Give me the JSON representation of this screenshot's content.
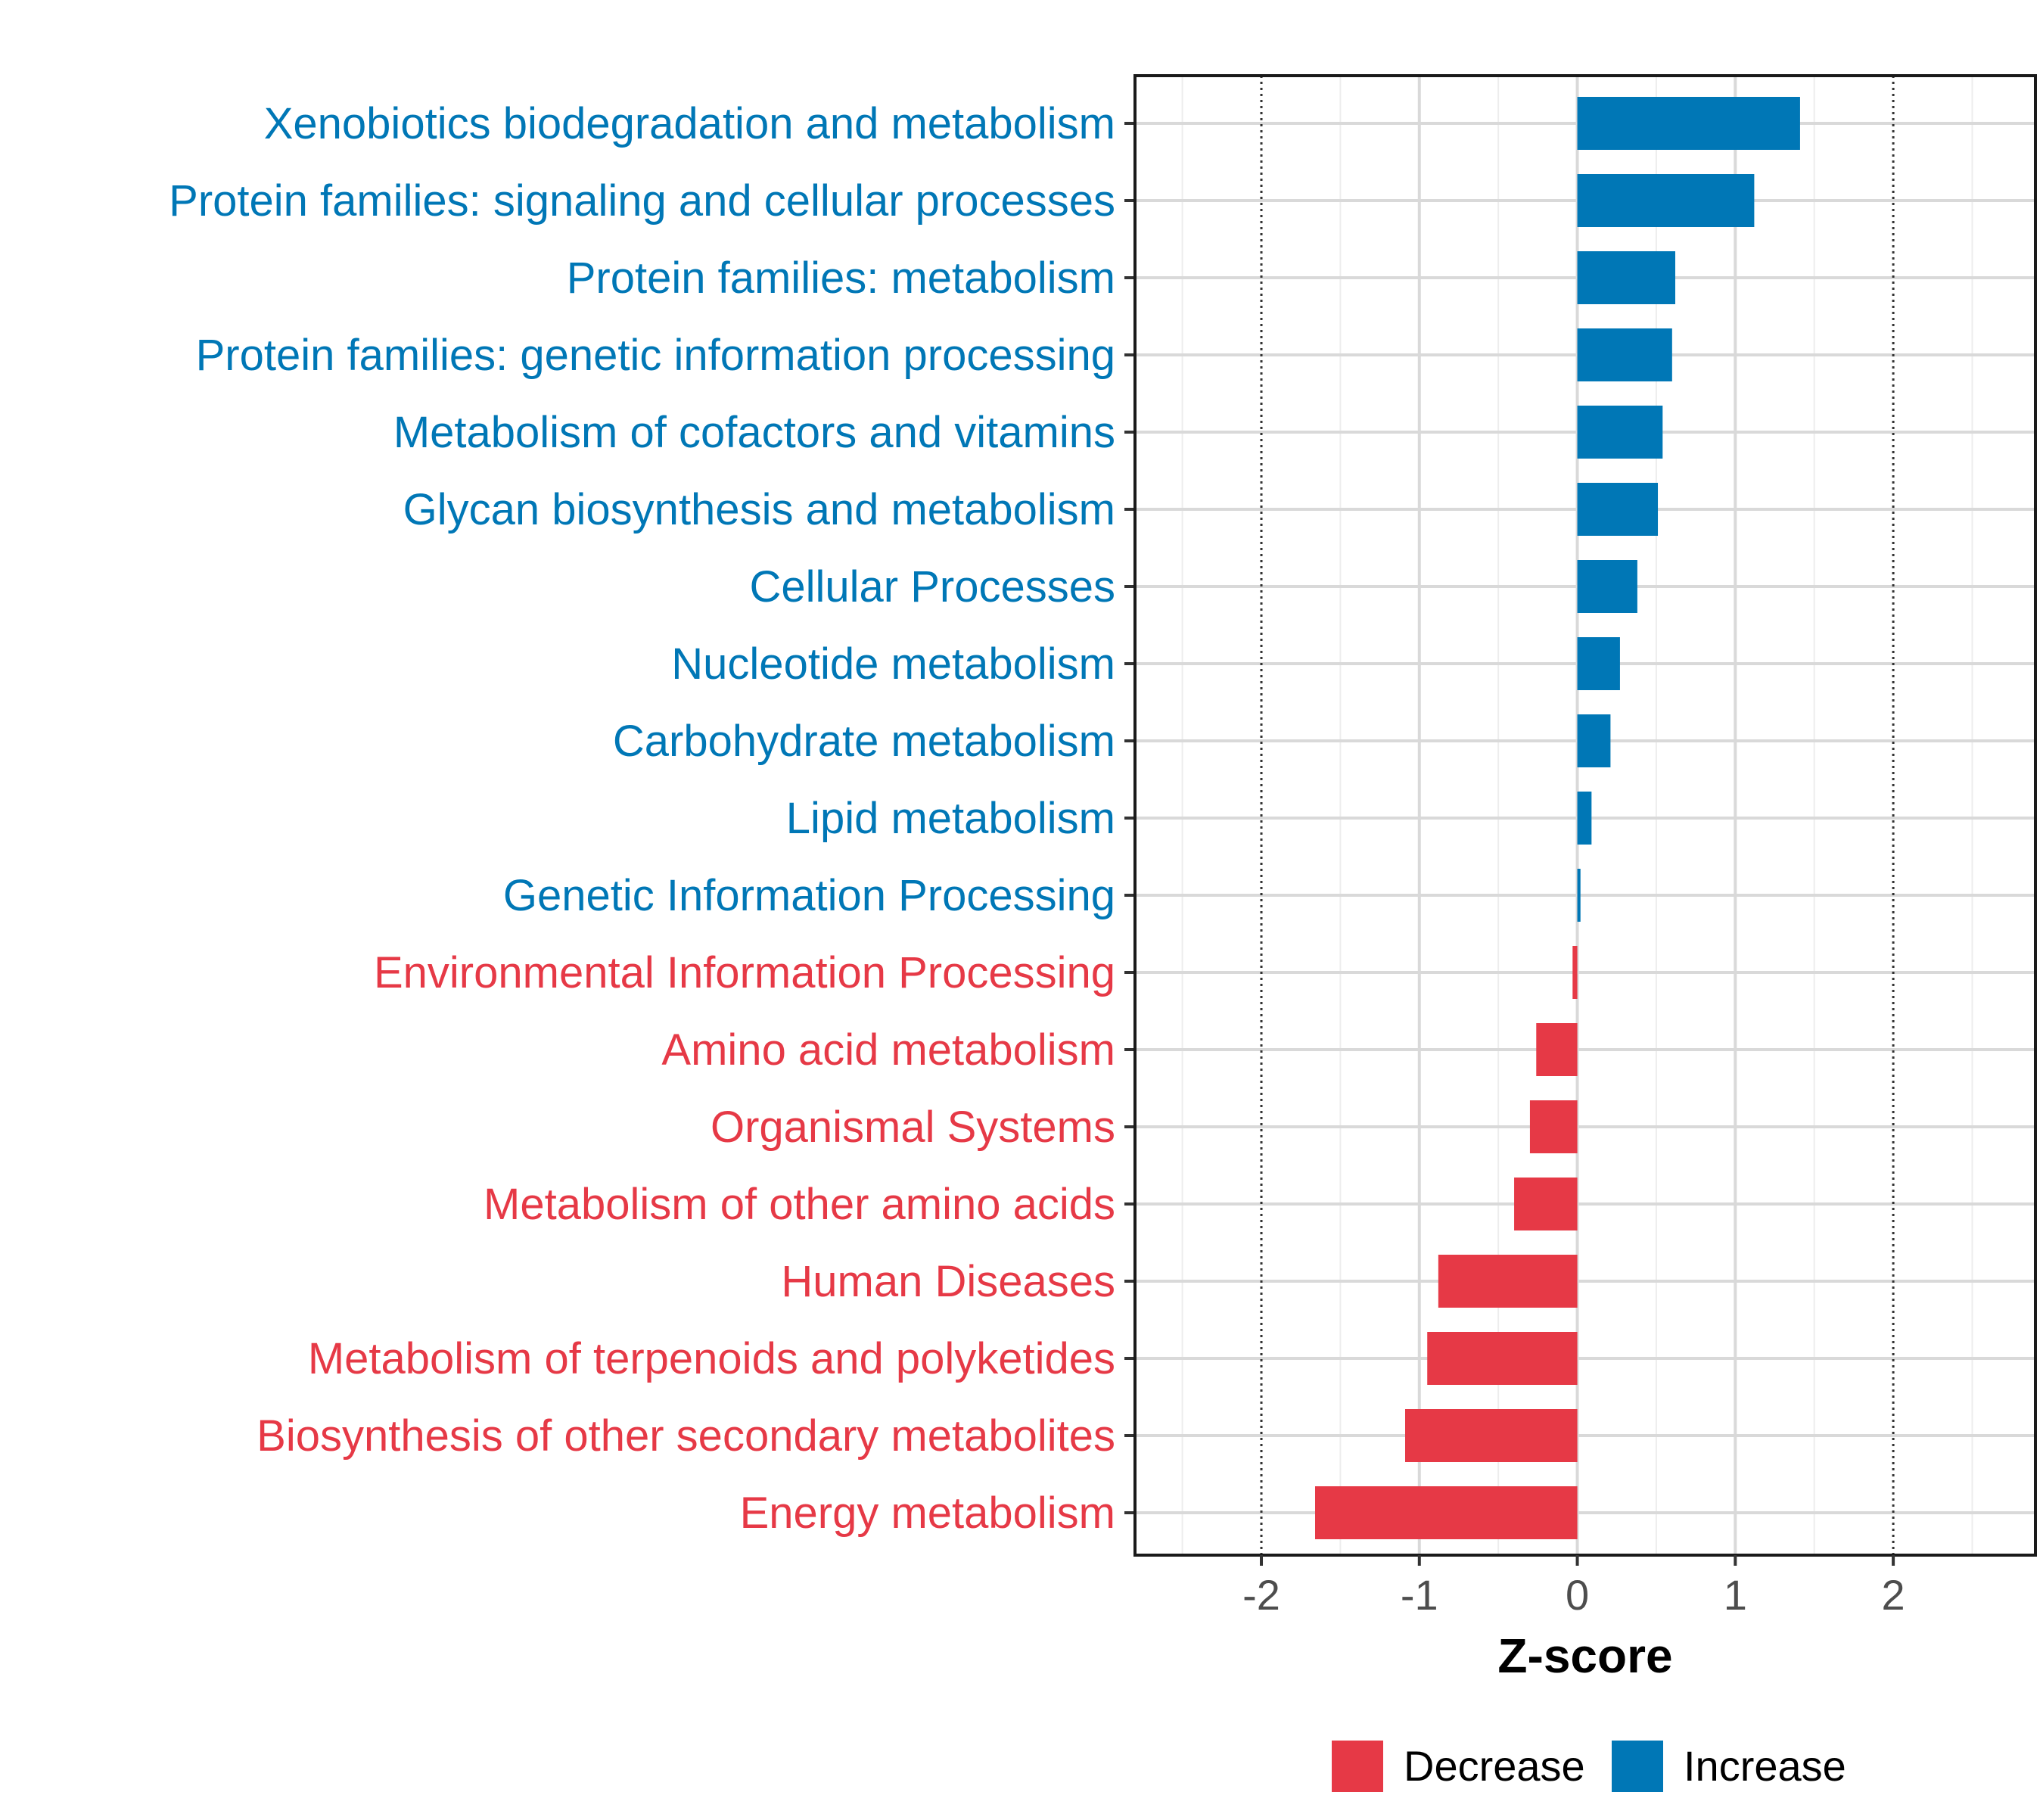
{
  "chart_data": {
    "type": "bar",
    "orientation": "horizontal",
    "xlabel": "Z-score",
    "ylabel": "",
    "xlim": [
      -2.8,
      2.9
    ],
    "xticks": [
      -2,
      -1,
      0,
      1,
      2
    ],
    "xtick_labels": [
      "-2",
      "-1",
      "0",
      "1",
      "2"
    ],
    "reference_lines": [
      -2,
      2
    ],
    "grid": true,
    "colors": {
      "Decrease": "#E63946",
      "Increase": "#0077B6"
    },
    "categories": [
      "Xenobiotics biodegradation and metabolism",
      "Protein families: signaling and cellular processes",
      "Protein families: metabolism",
      "Protein families: genetic information processing",
      "Metabolism of cofactors and vitamins",
      "Glycan biosynthesis and metabolism",
      "Cellular Processes",
      "Nucleotide metabolism",
      "Carbohydrate metabolism",
      "Lipid metabolism",
      "Genetic Information Processing",
      "Environmental Information Processing",
      "Amino acid metabolism",
      "Organismal Systems",
      "Metabolism of other amino acids",
      "Human Diseases",
      "Metabolism of terpenoids and polyketides",
      "Biosynthesis of other secondary metabolites",
      "Energy metabolism"
    ],
    "values": [
      1.41,
      1.12,
      0.62,
      0.6,
      0.54,
      0.51,
      0.38,
      0.27,
      0.21,
      0.09,
      0.02,
      -0.03,
      -0.26,
      -0.3,
      -0.4,
      -0.88,
      -0.95,
      -1.09,
      -1.66
    ],
    "groups": [
      "Increase",
      "Increase",
      "Increase",
      "Increase",
      "Increase",
      "Increase",
      "Increase",
      "Increase",
      "Increase",
      "Increase",
      "Increase",
      "Decrease",
      "Decrease",
      "Decrease",
      "Decrease",
      "Decrease",
      "Decrease",
      "Decrease",
      "Decrease"
    ],
    "legend": {
      "position": "bottom",
      "entries": [
        {
          "label": "Decrease",
          "color": "#E63946"
        },
        {
          "label": "Increase",
          "color": "#0077B6"
        }
      ]
    }
  }
}
